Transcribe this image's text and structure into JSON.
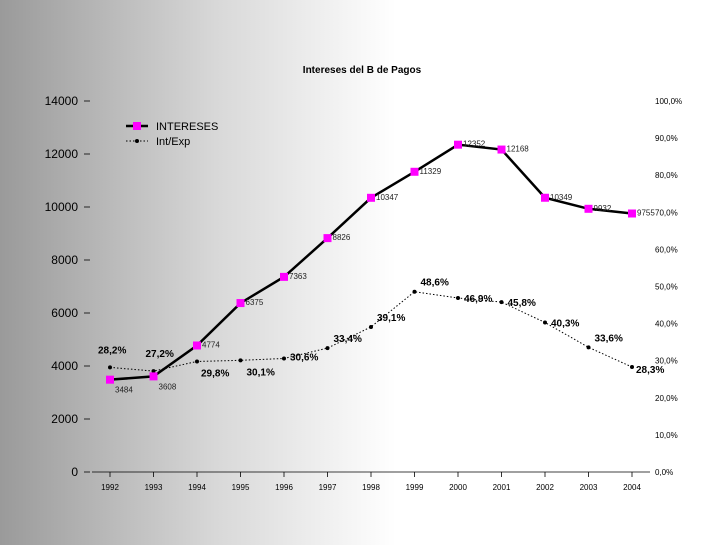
{
  "chart_data": {
    "type": "line",
    "title": "Intereses del B de Pagos",
    "categories": [
      "1992",
      "1993",
      "1994",
      "1995",
      "1996",
      "1997",
      "1998",
      "1999",
      "2000",
      "2001",
      "2002",
      "2003",
      "2004"
    ],
    "series": [
      {
        "name": "INTERESES",
        "axis": "left",
        "color": "#ff00ff",
        "values": [
          3484,
          3608,
          4774,
          6375,
          7363,
          8826,
          10347,
          11329,
          12352,
          12168,
          10349,
          9932,
          9755
        ],
        "labels": [
          "3484",
          "3608",
          "4774",
          "6375",
          "7363",
          "8826",
          "10347",
          "11329",
          "12352",
          "12168",
          "10349",
          "9932",
          "9755"
        ]
      },
      {
        "name": "Int/Exp",
        "axis": "right",
        "color": "#000000",
        "values": [
          28.2,
          27.2,
          29.8,
          30.1,
          30.6,
          33.4,
          39.1,
          48.6,
          46.9,
          45.8,
          40.3,
          33.6,
          28.3
        ],
        "labels": [
          "28,2%",
          "27,2%",
          "29,8%",
          "30,1%",
          "30,6%",
          "33,4%",
          "39,1%",
          "48,6%",
          "46,9%",
          "45,8%",
          "40,3%",
          "33,6%",
          "28,3%"
        ]
      }
    ],
    "left_axis": {
      "min": 0,
      "max": 14000,
      "step": 2000,
      "ticks": [
        "0",
        "2000",
        "4000",
        "6000",
        "8000",
        "10000",
        "12000",
        "14000"
      ]
    },
    "right_axis": {
      "min": 0,
      "max": 100,
      "step": 10,
      "ticks": [
        "0,0%",
        "10,0%",
        "20,0%",
        "30,0%",
        "40,0%",
        "50,0%",
        "60,0%",
        "70,0%",
        "80,0%",
        "90,0%",
        "100,0%"
      ]
    },
    "legend": "top-left",
    "grid": false
  }
}
